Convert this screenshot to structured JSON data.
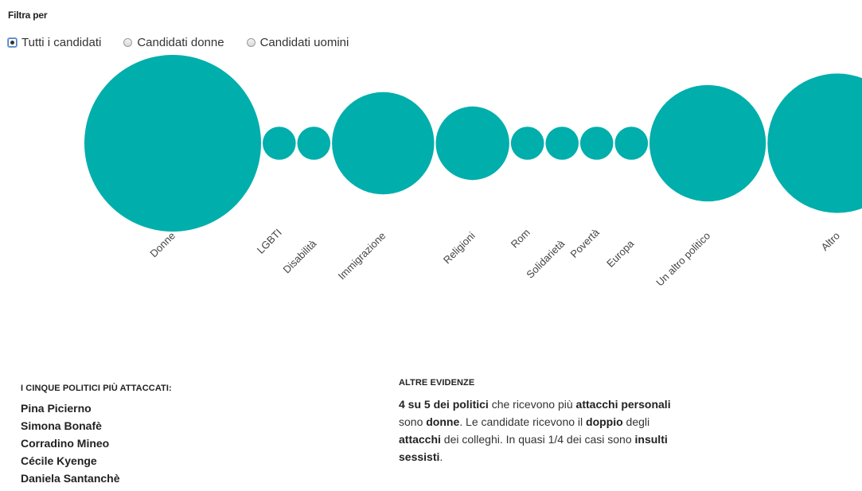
{
  "filter": {
    "title": "Filtra per",
    "options": [
      {
        "label": "Tutti i candidati",
        "checked": true
      },
      {
        "label": "Candidati donne",
        "checked": false
      },
      {
        "label": "Candidati uomini",
        "checked": false
      }
    ]
  },
  "chart_data": {
    "type": "bubble",
    "color": "#00aeac",
    "categories": [
      "Donne",
      "LGBTI",
      "Disabilità",
      "Immigrazione",
      "Religioni",
      "Rom",
      "Solidarietà",
      "Povertà",
      "Europa",
      "Un altro politico",
      "Altro"
    ],
    "values": [
      100,
      3.5,
      3.5,
      33.5,
      17.3,
      3.5,
      3.5,
      3.5,
      3.5,
      43.4,
      62.3
    ]
  },
  "top_politicians": {
    "title": "I CINQUE POLITICI PIÙ ATTACCATI:",
    "names": [
      "Pina Picierno",
      "Simona Bonafè",
      "Corradino Mineo",
      "Cécile Kyenge",
      "Daniela Santanchè"
    ]
  },
  "other_evidence": {
    "title": "ALTRE EVIDENZE",
    "segments": [
      {
        "text": "4 su 5 dei politici",
        "bold": true
      },
      {
        "text": " che ricevono più ",
        "bold": false
      },
      {
        "text": "attacchi personali",
        "bold": true
      },
      {
        "text": " sono ",
        "bold": false
      },
      {
        "text": "donne",
        "bold": true
      },
      {
        "text": ". Le candidate ricevono il ",
        "bold": false
      },
      {
        "text": "doppio",
        "bold": true
      },
      {
        "text": " degli ",
        "bold": false
      },
      {
        "text": "attacchi",
        "bold": true
      },
      {
        "text": " dei colleghi. In quasi 1/4 dei casi sono ",
        "bold": false
      },
      {
        "text": "insulti sessisti",
        "bold": true
      },
      {
        "text": ".",
        "bold": false
      }
    ]
  }
}
